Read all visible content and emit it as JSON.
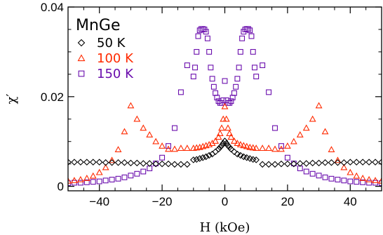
{
  "chart_data": {
    "type": "scatter",
    "sample_label": "MnGe",
    "xlabel": "H (kOe)",
    "ylabel": "χ′",
    "xlim": [
      -50,
      50
    ],
    "ylim": [
      -0.001,
      0.04
    ],
    "x_ticks": [
      -40,
      -20,
      0,
      20,
      40
    ],
    "x_tick_labels": [
      "−40",
      "−20",
      "0",
      "20",
      "40"
    ],
    "y_ticks": [
      0,
      0.02,
      0.04
    ],
    "y_tick_labels": [
      "0",
      "0.02",
      "0.04"
    ],
    "grid": false,
    "legend_position": "top-left",
    "series": [
      {
        "name": "50 K",
        "marker": "diamond",
        "color": "#000000",
        "x": [
          -50,
          -48,
          -46,
          -44,
          -42,
          -40,
          -38,
          -36,
          -34,
          -32,
          -30,
          -28,
          -26,
          -24,
          -22,
          -20,
          -18,
          -16,
          -14,
          -12,
          -10,
          -9,
          -8,
          -7,
          -6,
          -5,
          -4,
          -3,
          -2,
          -1.5,
          -1,
          -0.5,
          0,
          0.5,
          1,
          1.5,
          2,
          3,
          4,
          5,
          6,
          7,
          8,
          9,
          10,
          12,
          14,
          16,
          18,
          20,
          22,
          24,
          26,
          28,
          30,
          32,
          34,
          36,
          38,
          40,
          42,
          44,
          46,
          48,
          50
        ],
        "y": [
          0.0054,
          0.0054,
          0.0054,
          0.0054,
          0.0054,
          0.0054,
          0.0053,
          0.0053,
          0.0053,
          0.0053,
          0.0052,
          0.0052,
          0.0051,
          0.0051,
          0.005,
          0.005,
          0.005,
          0.0049,
          0.0049,
          0.0049,
          0.0059,
          0.006,
          0.0062,
          0.0064,
          0.0066,
          0.0069,
          0.0072,
          0.0077,
          0.0083,
          0.0087,
          0.0091,
          0.0096,
          0.0101,
          0.0096,
          0.0091,
          0.0087,
          0.0083,
          0.0077,
          0.0072,
          0.0069,
          0.0066,
          0.0064,
          0.0062,
          0.006,
          0.0059,
          0.0049,
          0.0049,
          0.0049,
          0.005,
          0.005,
          0.005,
          0.0051,
          0.0051,
          0.0052,
          0.0052,
          0.0053,
          0.0053,
          0.0053,
          0.0053,
          0.0054,
          0.0054,
          0.0054,
          0.0054,
          0.0054,
          0.0054
        ]
      },
      {
        "name": "100 K",
        "marker": "triangle",
        "color": "#ff2a00",
        "x": [
          -50,
          -48,
          -46,
          -44,
          -42,
          -40,
          -38,
          -36,
          -34,
          -32,
          -30,
          -28,
          -26,
          -24,
          -22,
          -20,
          -18,
          -16,
          -14,
          -12,
          -10,
          -9,
          -8,
          -7,
          -6,
          -5,
          -4,
          -3,
          -2,
          -1.5,
          -1,
          -0.5,
          0,
          0.5,
          1,
          1.5,
          2,
          3,
          4,
          5,
          6,
          7,
          8,
          9,
          10,
          12,
          14,
          16,
          18,
          20,
          22,
          24,
          26,
          28,
          30,
          32,
          34,
          36,
          38,
          40,
          42,
          44,
          46,
          48,
          50
        ],
        "y": [
          0.0012,
          0.0013,
          0.0015,
          0.0018,
          0.0023,
          0.0031,
          0.0042,
          0.0058,
          0.0082,
          0.0122,
          0.018,
          0.015,
          0.013,
          0.0115,
          0.01,
          0.009,
          0.0083,
          0.0083,
          0.0085,
          0.0085,
          0.0085,
          0.0086,
          0.0087,
          0.0089,
          0.0091,
          0.0093,
          0.0096,
          0.0101,
          0.011,
          0.0118,
          0.013,
          0.015,
          0.0178,
          0.015,
          0.013,
          0.0118,
          0.011,
          0.0101,
          0.0096,
          0.0093,
          0.0091,
          0.0089,
          0.0087,
          0.0086,
          0.0085,
          0.0085,
          0.0085,
          0.0083,
          0.0083,
          0.009,
          0.01,
          0.0115,
          0.013,
          0.015,
          0.018,
          0.0122,
          0.0082,
          0.0058,
          0.0042,
          0.0031,
          0.0023,
          0.0018,
          0.0015,
          0.0013,
          0.0012
        ]
      },
      {
        "name": "150 K",
        "marker": "square",
        "color": "#6a0dad",
        "x": [
          -50,
          -48,
          -46,
          -44,
          -42,
          -40,
          -38,
          -36,
          -34,
          -32,
          -30,
          -28,
          -26,
          -24,
          -22,
          -20,
          -18,
          -16,
          -14,
          -12,
          -10,
          -9.5,
          -9,
          -8.5,
          -8,
          -7.5,
          -7,
          -6.5,
          -6,
          -5.5,
          -5,
          -4.5,
          -4,
          -3.5,
          -3,
          -2.5,
          -2,
          -1.5,
          -1,
          -0.5,
          0,
          0.5,
          1,
          1.5,
          2,
          2.5,
          3,
          3.5,
          4,
          4.5,
          5,
          5.5,
          6,
          6.5,
          7,
          7.5,
          8,
          8.5,
          9,
          9.5,
          10,
          12,
          14,
          16,
          18,
          20,
          22,
          24,
          26,
          28,
          30,
          32,
          34,
          36,
          38,
          40,
          42,
          44,
          46,
          48,
          50
        ],
        "y": [
          0.0007,
          0.0008,
          0.0008,
          0.0009,
          0.001,
          0.0011,
          0.0013,
          0.0015,
          0.0017,
          0.002,
          0.0024,
          0.0028,
          0.0033,
          0.004,
          0.0051,
          0.0064,
          0.009,
          0.013,
          0.021,
          0.027,
          0.0245,
          0.0265,
          0.03,
          0.0335,
          0.0348,
          0.0351,
          0.0351,
          0.035,
          0.0345,
          0.033,
          0.03,
          0.0265,
          0.024,
          0.0222,
          0.0208,
          0.0198,
          0.019,
          0.0186,
          0.0186,
          0.0192,
          0.0235,
          0.0192,
          0.0186,
          0.0186,
          0.019,
          0.0198,
          0.0208,
          0.0222,
          0.024,
          0.0265,
          0.03,
          0.033,
          0.0345,
          0.035,
          0.0351,
          0.0351,
          0.0348,
          0.0335,
          0.03,
          0.0265,
          0.0245,
          0.027,
          0.021,
          0.013,
          0.009,
          0.0064,
          0.0051,
          0.004,
          0.0033,
          0.0028,
          0.0024,
          0.002,
          0.0017,
          0.0015,
          0.0013,
          0.0011,
          0.001,
          0.0009,
          0.0008,
          0.0008,
          0.0007
        ]
      }
    ]
  }
}
